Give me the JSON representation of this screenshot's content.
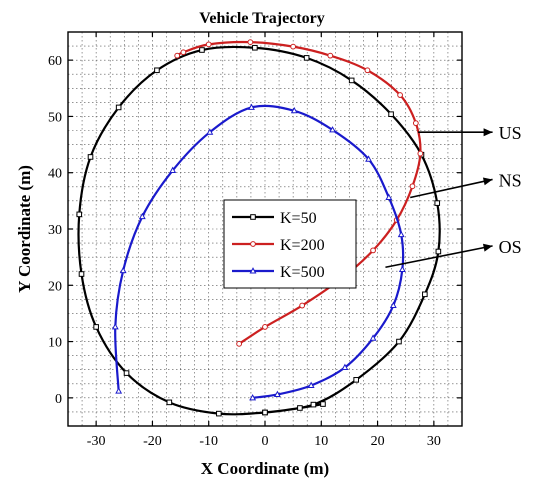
{
  "chart_data": {
    "type": "line",
    "title": "Vehicle Trajectory",
    "xlabel": "X Coordinate (m)",
    "ylabel": "Y Coordinate (m)",
    "xlim": [
      -35,
      35
    ],
    "ylim": [
      -5,
      65
    ],
    "xticks": [
      -30,
      -20,
      -10,
      0,
      10,
      20,
      30
    ],
    "yticks": [
      0,
      10,
      20,
      30,
      40,
      50,
      60
    ],
    "xtick_labels": [
      "-30",
      "-20",
      "-10",
      "0",
      "10",
      "20",
      "30"
    ],
    "ytick_labels": [
      "0",
      "10",
      "20",
      "30",
      "40",
      "50",
      "60"
    ],
    "grid": true,
    "legend": "center",
    "series": [
      {
        "name": "K=50",
        "color": "#000000",
        "marker": "square",
        "x": [
          0,
          8.6,
          16.2,
          23.8,
          28.4,
          30.8,
          30.6,
          27.8,
          22.4,
          15.4,
          7.4,
          -1.8,
          -11.2,
          -19.2,
          -26,
          -31,
          -33,
          -32.6,
          -30,
          -24.6,
          -17,
          -8.2,
          0,
          6.2,
          10.3
        ],
        "y": [
          -2.6,
          -1.2,
          3.2,
          10,
          18.4,
          26,
          34.6,
          43.2,
          50.4,
          56.4,
          60.4,
          62.2,
          61.8,
          58.2,
          51.6,
          42.8,
          32.6,
          22,
          12.6,
          4.4,
          -0.8,
          -2.8,
          -2.6,
          -1.8,
          -1.1
        ]
      },
      {
        "name": "K=200",
        "color": "#cc2020",
        "marker": "circle",
        "x": [
          -15.6,
          -14.5,
          -10,
          -2.6,
          5,
          11.6,
          18.2,
          24,
          26.8,
          27.6,
          26.2,
          23.4,
          19.2,
          13.6,
          6.6,
          0,
          -4.6
        ],
        "y": [
          60.8,
          61.4,
          62.8,
          63.2,
          62.4,
          60.8,
          58.2,
          53.8,
          48.8,
          43.4,
          37.6,
          31.6,
          26.2,
          21.2,
          16.4,
          12.6,
          9.6
        ]
      },
      {
        "name": "K=500",
        "color": "#1a1acc",
        "marker": "triangle",
        "x": [
          -26,
          -26.6,
          -25.2,
          -21.8,
          -16.4,
          -9.8,
          -2.4,
          5.2,
          12,
          18.4,
          22,
          24.2,
          24.4,
          22.8,
          19.2,
          14.2,
          8.2,
          2.2,
          -2.2
        ],
        "y": [
          1.2,
          12.6,
          22.6,
          32.2,
          40.4,
          47.2,
          51.6,
          51,
          47.6,
          42.4,
          35.6,
          29,
          22.8,
          16.4,
          10.6,
          5.4,
          2.2,
          0.6,
          0
        ]
      }
    ],
    "annotations": [
      {
        "text": "US",
        "x_text": 41.5,
        "y_text": 47.2,
        "x_target": 27.2,
        "y_target": 47.2
      },
      {
        "text": "NS",
        "x_text": 41.5,
        "y_text": 38.8,
        "x_target": 25.8,
        "y_target": 35.6
      },
      {
        "text": "OS",
        "x_text": 41.5,
        "y_text": 27,
        "x_target": 21.4,
        "y_target": 23.2
      }
    ]
  }
}
